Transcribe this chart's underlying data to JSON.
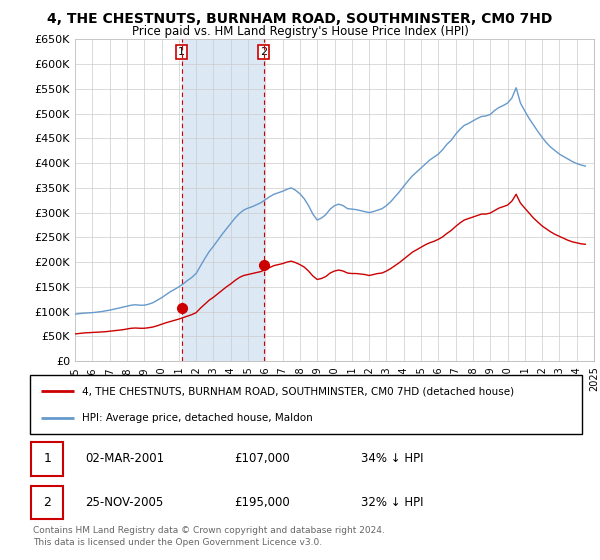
{
  "title": "4, THE CHESTNUTS, BURNHAM ROAD, SOUTHMINSTER, CM0 7HD",
  "subtitle": "Price paid vs. HM Land Registry's House Price Index (HPI)",
  "legend_line1": "4, THE CHESTNUTS, BURNHAM ROAD, SOUTHMINSTER, CM0 7HD (detached house)",
  "legend_line2": "HPI: Average price, detached house, Maldon",
  "footnote": "Contains HM Land Registry data © Crown copyright and database right 2024.\nThis data is licensed under the Open Government Licence v3.0.",
  "table_rows": [
    {
      "num": "1",
      "date": "02-MAR-2001",
      "price": "£107,000",
      "hpi": "34% ↓ HPI"
    },
    {
      "num": "2",
      "date": "25-NOV-2005",
      "price": "£195,000",
      "hpi": "32% ↓ HPI"
    }
  ],
  "red_color": "#cc0000",
  "blue_color": "#6699cc",
  "shade_color": "#dce9f5",
  "ylim": [
    0,
    650000
  ],
  "yticks": [
    0,
    50000,
    100000,
    150000,
    200000,
    250000,
    300000,
    350000,
    400000,
    450000,
    500000,
    550000,
    600000,
    650000
  ],
  "hpi_x": [
    1995.0,
    1995.25,
    1995.5,
    1995.75,
    1996.0,
    1996.25,
    1996.5,
    1996.75,
    1997.0,
    1997.25,
    1997.5,
    1997.75,
    1998.0,
    1998.25,
    1998.5,
    1998.75,
    1999.0,
    1999.25,
    1999.5,
    1999.75,
    2000.0,
    2000.25,
    2000.5,
    2000.75,
    2001.0,
    2001.25,
    2001.5,
    2001.75,
    2002.0,
    2002.25,
    2002.5,
    2002.75,
    2003.0,
    2003.25,
    2003.5,
    2003.75,
    2004.0,
    2004.25,
    2004.5,
    2004.75,
    2005.0,
    2005.25,
    2005.5,
    2005.75,
    2006.0,
    2006.25,
    2006.5,
    2006.75,
    2007.0,
    2007.25,
    2007.5,
    2007.75,
    2008.0,
    2008.25,
    2008.5,
    2008.75,
    2009.0,
    2009.25,
    2009.5,
    2009.75,
    2010.0,
    2010.25,
    2010.5,
    2010.75,
    2011.0,
    2011.25,
    2011.5,
    2011.75,
    2012.0,
    2012.25,
    2012.5,
    2012.75,
    2013.0,
    2013.25,
    2013.5,
    2013.75,
    2014.0,
    2014.25,
    2014.5,
    2014.75,
    2015.0,
    2015.25,
    2015.5,
    2015.75,
    2016.0,
    2016.25,
    2016.5,
    2016.75,
    2017.0,
    2017.25,
    2017.5,
    2017.75,
    2018.0,
    2018.25,
    2018.5,
    2018.75,
    2019.0,
    2019.25,
    2019.5,
    2019.75,
    2020.0,
    2020.25,
    2020.5,
    2020.75,
    2021.0,
    2021.25,
    2021.5,
    2021.75,
    2022.0,
    2022.25,
    2022.5,
    2022.75,
    2023.0,
    2023.25,
    2023.5,
    2023.75,
    2024.0,
    2024.25,
    2024.5
  ],
  "hpi_y": [
    95000,
    96000,
    97000,
    97500,
    98000,
    99000,
    100000,
    101500,
    103000,
    105000,
    107000,
    109000,
    111000,
    113000,
    114000,
    113000,
    113000,
    115000,
    118000,
    123000,
    128000,
    134000,
    140000,
    145000,
    150000,
    156000,
    163000,
    169000,
    177000,
    192000,
    207000,
    221000,
    232000,
    244000,
    256000,
    267000,
    278000,
    289000,
    298000,
    305000,
    309000,
    312000,
    316000,
    320000,
    326000,
    332000,
    337000,
    340000,
    343000,
    347000,
    350000,
    345000,
    338000,
    328000,
    314000,
    297000,
    285000,
    289000,
    296000,
    307000,
    314000,
    317000,
    314000,
    308000,
    307000,
    306000,
    304000,
    302000,
    300000,
    302000,
    305000,
    308000,
    314000,
    322000,
    332000,
    342000,
    353000,
    364000,
    374000,
    382000,
    390000,
    398000,
    406000,
    412000,
    418000,
    427000,
    438000,
    446000,
    458000,
    468000,
    476000,
    480000,
    485000,
    490000,
    494000,
    495000,
    498000,
    506000,
    512000,
    516000,
    521000,
    531000,
    552000,
    521000,
    505000,
    490000,
    477000,
    464000,
    452000,
    441000,
    432000,
    425000,
    418000,
    413000,
    408000,
    403000,
    399000,
    396000,
    394000
  ],
  "red_x": [
    1995.0,
    1995.25,
    1995.5,
    1995.75,
    1996.0,
    1996.25,
    1996.5,
    1996.75,
    1997.0,
    1997.25,
    1997.5,
    1997.75,
    1998.0,
    1998.25,
    1998.5,
    1998.75,
    1999.0,
    1999.25,
    1999.5,
    1999.75,
    2000.0,
    2000.25,
    2000.5,
    2000.75,
    2001.0,
    2001.25,
    2001.5,
    2001.75,
    2002.0,
    2002.25,
    2002.5,
    2002.75,
    2003.0,
    2003.25,
    2003.5,
    2003.75,
    2004.0,
    2004.25,
    2004.5,
    2004.75,
    2005.0,
    2005.25,
    2005.5,
    2005.75,
    2006.0,
    2006.25,
    2006.5,
    2006.75,
    2007.0,
    2007.25,
    2007.5,
    2007.75,
    2008.0,
    2008.25,
    2008.5,
    2008.75,
    2009.0,
    2009.25,
    2009.5,
    2009.75,
    2010.0,
    2010.25,
    2010.5,
    2010.75,
    2011.0,
    2011.25,
    2011.5,
    2011.75,
    2012.0,
    2012.25,
    2012.5,
    2012.75,
    2013.0,
    2013.25,
    2013.5,
    2013.75,
    2014.0,
    2014.25,
    2014.5,
    2014.75,
    2015.0,
    2015.25,
    2015.5,
    2015.75,
    2016.0,
    2016.25,
    2016.5,
    2016.75,
    2017.0,
    2017.25,
    2017.5,
    2017.75,
    2018.0,
    2018.25,
    2018.5,
    2018.75,
    2019.0,
    2019.25,
    2019.5,
    2019.75,
    2020.0,
    2020.25,
    2020.5,
    2020.75,
    2021.0,
    2021.25,
    2021.5,
    2021.75,
    2022.0,
    2022.25,
    2022.5,
    2022.75,
    2023.0,
    2023.25,
    2023.5,
    2023.75,
    2024.0,
    2024.25,
    2024.5
  ],
  "red_y": [
    55000,
    56000,
    57000,
    57500,
    58000,
    58500,
    59000,
    59500,
    60500,
    61500,
    62500,
    63500,
    65000,
    66500,
    67000,
    66500,
    66500,
    67500,
    69000,
    71500,
    74500,
    77500,
    80000,
    82500,
    85000,
    88000,
    91000,
    94000,
    98000,
    107000,
    115000,
    123000,
    129000,
    136000,
    143000,
    150000,
    156000,
    163000,
    169000,
    173000,
    175000,
    177000,
    179000,
    181000,
    185000,
    189000,
    193000,
    195000,
    197000,
    200000,
    202000,
    199000,
    195000,
    190000,
    182000,
    172000,
    165000,
    167000,
    171000,
    178000,
    182000,
    184000,
    182000,
    178000,
    177000,
    177000,
    176000,
    175000,
    173000,
    175000,
    177000,
    178000,
    182000,
    187000,
    193000,
    199000,
    206000,
    213000,
    220000,
    225000,
    230000,
    235000,
    239000,
    242000,
    246000,
    251000,
    258000,
    264000,
    272000,
    279000,
    285000,
    288000,
    291000,
    294000,
    297000,
    297000,
    299000,
    304000,
    309000,
    312000,
    315000,
    323000,
    337000,
    319000,
    309000,
    299000,
    289000,
    281000,
    273000,
    267000,
    261000,
    256000,
    252000,
    248000,
    244000,
    241000,
    239000,
    237000,
    236000
  ],
  "marker1_x": 2001.17,
  "marker1_y": 107000,
  "marker2_x": 2005.9,
  "marker2_y": 195000,
  "vline1_x": 2001.17,
  "vline2_x": 2005.9,
  "xtick_years": [
    1995,
    1996,
    1997,
    1998,
    1999,
    2000,
    2001,
    2002,
    2003,
    2004,
    2005,
    2006,
    2007,
    2008,
    2009,
    2010,
    2011,
    2012,
    2013,
    2014,
    2015,
    2016,
    2017,
    2018,
    2019,
    2020,
    2021,
    2022,
    2023,
    2024,
    2025
  ]
}
